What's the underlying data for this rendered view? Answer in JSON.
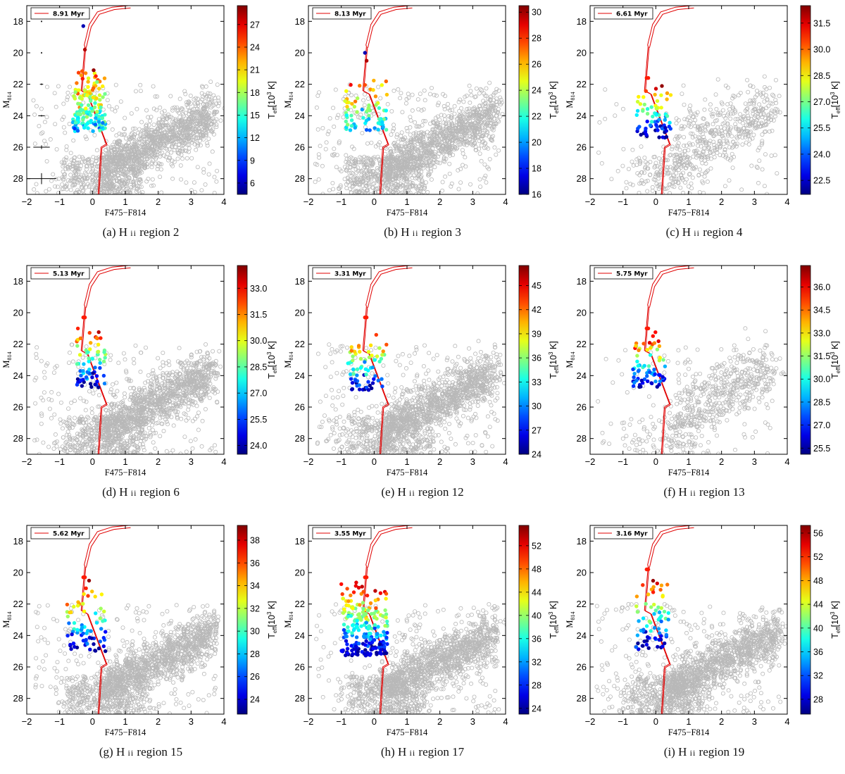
{
  "figure": {
    "xlabel": "F475−F814",
    "ylabel_main": "M",
    "ylabel_sub": "814",
    "cbar_label_main": "T",
    "cbar_label_sub": "eff",
    "cbar_label_rest": "[10",
    "cbar_label_sup": "3",
    "cbar_label_end": " K]",
    "xticks": [
      -2,
      -1,
      0,
      1,
      2,
      3,
      4
    ],
    "yticks": [
      18,
      20,
      22,
      24,
      26,
      28
    ],
    "xlim": [
      -2,
      4
    ],
    "colors": {
      "field": "#b8b8b8",
      "isochrone": "#e00000"
    }
  },
  "chart_data": [
    {
      "type": "scatter",
      "panel": "a",
      "caption_prefix": "(a) H",
      "caption_hii": "ii",
      "caption_region": "region 2",
      "legend": "8.91 Myr",
      "ylim": [
        29,
        17
      ],
      "cbar_ticks": [
        6,
        9,
        12,
        15,
        18,
        21,
        24,
        27
      ],
      "cbar_range": [
        4.5,
        29.5
      ],
      "field_density": "high",
      "errorbars": true,
      "cluster": {
        "x": [
          -0.6,
          0.4
        ],
        "y": [
          21,
          25
        ],
        "top": [
          18.3,
          19.8
        ]
      }
    },
    {
      "type": "scatter",
      "panel": "b",
      "caption_prefix": "(b) H",
      "caption_hii": "ii",
      "caption_region": "region 3",
      "legend": "8.13 Myr",
      "ylim": [
        29,
        17
      ],
      "cbar_ticks": [
        16,
        18,
        20,
        22,
        24,
        26,
        28,
        30
      ],
      "cbar_range": [
        16,
        30.5
      ],
      "field_density": "high",
      "errorbars": false,
      "cluster": {
        "x": [
          -0.9,
          0.4
        ],
        "y": [
          21.5,
          25
        ],
        "top": [
          20,
          20.5
        ]
      }
    },
    {
      "type": "scatter",
      "panel": "c",
      "caption_prefix": "(c) H",
      "caption_hii": "ii",
      "caption_region": "region 4",
      "legend": "6.61 Myr",
      "ylim": [
        29,
        17
      ],
      "cbar_ticks": [
        22.5,
        24.0,
        25.5,
        27.0,
        28.5,
        30.0,
        31.5
      ],
      "cbar_range": [
        21.7,
        32.5
      ],
      "field_density": "low",
      "errorbars": false,
      "cluster": {
        "x": [
          -0.6,
          0.5
        ],
        "y": [
          21.8,
          25.4
        ],
        "top": [
          21.6,
          21.6
        ]
      }
    },
    {
      "type": "scatter",
      "panel": "d",
      "caption_prefix": "(d) H",
      "caption_hii": "ii",
      "caption_region": "region 6",
      "legend": "5.13 Myr",
      "ylim": [
        29,
        17
      ],
      "cbar_ticks": [
        24.0,
        25.5,
        27.0,
        28.5,
        30.0,
        31.5,
        33.0
      ],
      "cbar_range": [
        23.5,
        34.3
      ],
      "field_density": "high",
      "errorbars": false,
      "cluster": {
        "x": [
          -0.5,
          0.4
        ],
        "y": [
          20.5,
          24.8
        ],
        "top": [
          20.3,
          20.3
        ]
      }
    },
    {
      "type": "scatter",
      "panel": "e",
      "caption_prefix": "(e) H",
      "caption_hii": "ii",
      "caption_region": "region 12",
      "legend": "3.31 Myr",
      "ylim": [
        29,
        17
      ],
      "cbar_ticks": [
        24,
        27,
        30,
        33,
        36,
        39,
        42,
        45
      ],
      "cbar_range": [
        24,
        47.5
      ],
      "field_density": "high",
      "errorbars": false,
      "cluster": {
        "x": [
          -0.8,
          0.4
        ],
        "y": [
          20.8,
          25
        ],
        "top": [
          20.3,
          20.3
        ]
      }
    },
    {
      "type": "scatter",
      "panel": "f",
      "caption_prefix": "(f) H",
      "caption_hii": "ii",
      "caption_region": "region 13",
      "legend": "5.75 Myr",
      "ylim": [
        29,
        17
      ],
      "cbar_ticks": [
        25.5,
        27.0,
        28.5,
        30.0,
        31.5,
        33.0,
        34.5,
        36.0
      ],
      "cbar_range": [
        25.1,
        37.4
      ],
      "field_density": "low",
      "errorbars": false,
      "cluster": {
        "x": [
          -0.7,
          0.3
        ],
        "y": [
          21.0,
          24.8
        ],
        "top": [
          21.0,
          21.0
        ]
      }
    },
    {
      "type": "scatter",
      "panel": "g",
      "caption_prefix": "(g) H",
      "caption_hii": "ii",
      "caption_region": "region 15",
      "legend": "5.62 Myr",
      "ylim": [
        29,
        17
      ],
      "cbar_ticks": [
        24,
        26,
        28,
        30,
        32,
        34,
        36,
        38
      ],
      "cbar_range": [
        22.7,
        39.3
      ],
      "field_density": "high",
      "errorbars": false,
      "cluster": {
        "x": [
          -0.8,
          0.4
        ],
        "y": [
          20.3,
          25
        ],
        "top": [
          20.3,
          20.3
        ]
      }
    },
    {
      "type": "scatter",
      "panel": "h",
      "caption_prefix": "(h) H",
      "caption_hii": "ii",
      "caption_region": "region 17",
      "legend": "3.55 Myr",
      "ylim": [
        29,
        17
      ],
      "cbar_ticks": [
        24,
        28,
        32,
        36,
        40,
        44,
        48,
        52
      ],
      "cbar_range": [
        23,
        55.5
      ],
      "field_density": "high",
      "errorbars": false,
      "cluster": {
        "x": [
          -1.0,
          0.4
        ],
        "y": [
          20.3,
          25.3
        ],
        "top": [
          20.3,
          20.3
        ]
      }
    },
    {
      "type": "scatter",
      "panel": "i",
      "caption_prefix": "(i) H",
      "caption_hii": "ii",
      "caption_region": "region 19",
      "legend": "3.16 Myr",
      "ylim": [
        29,
        17
      ],
      "cbar_ticks": [
        28,
        32,
        36,
        40,
        44,
        48,
        52,
        56
      ],
      "cbar_range": [
        25.5,
        57.3
      ],
      "field_density": "high",
      "errorbars": false,
      "cluster": {
        "x": [
          -0.6,
          0.4
        ],
        "y": [
          19.8,
          24.9
        ],
        "top": [
          19.8,
          19.8
        ]
      }
    }
  ]
}
